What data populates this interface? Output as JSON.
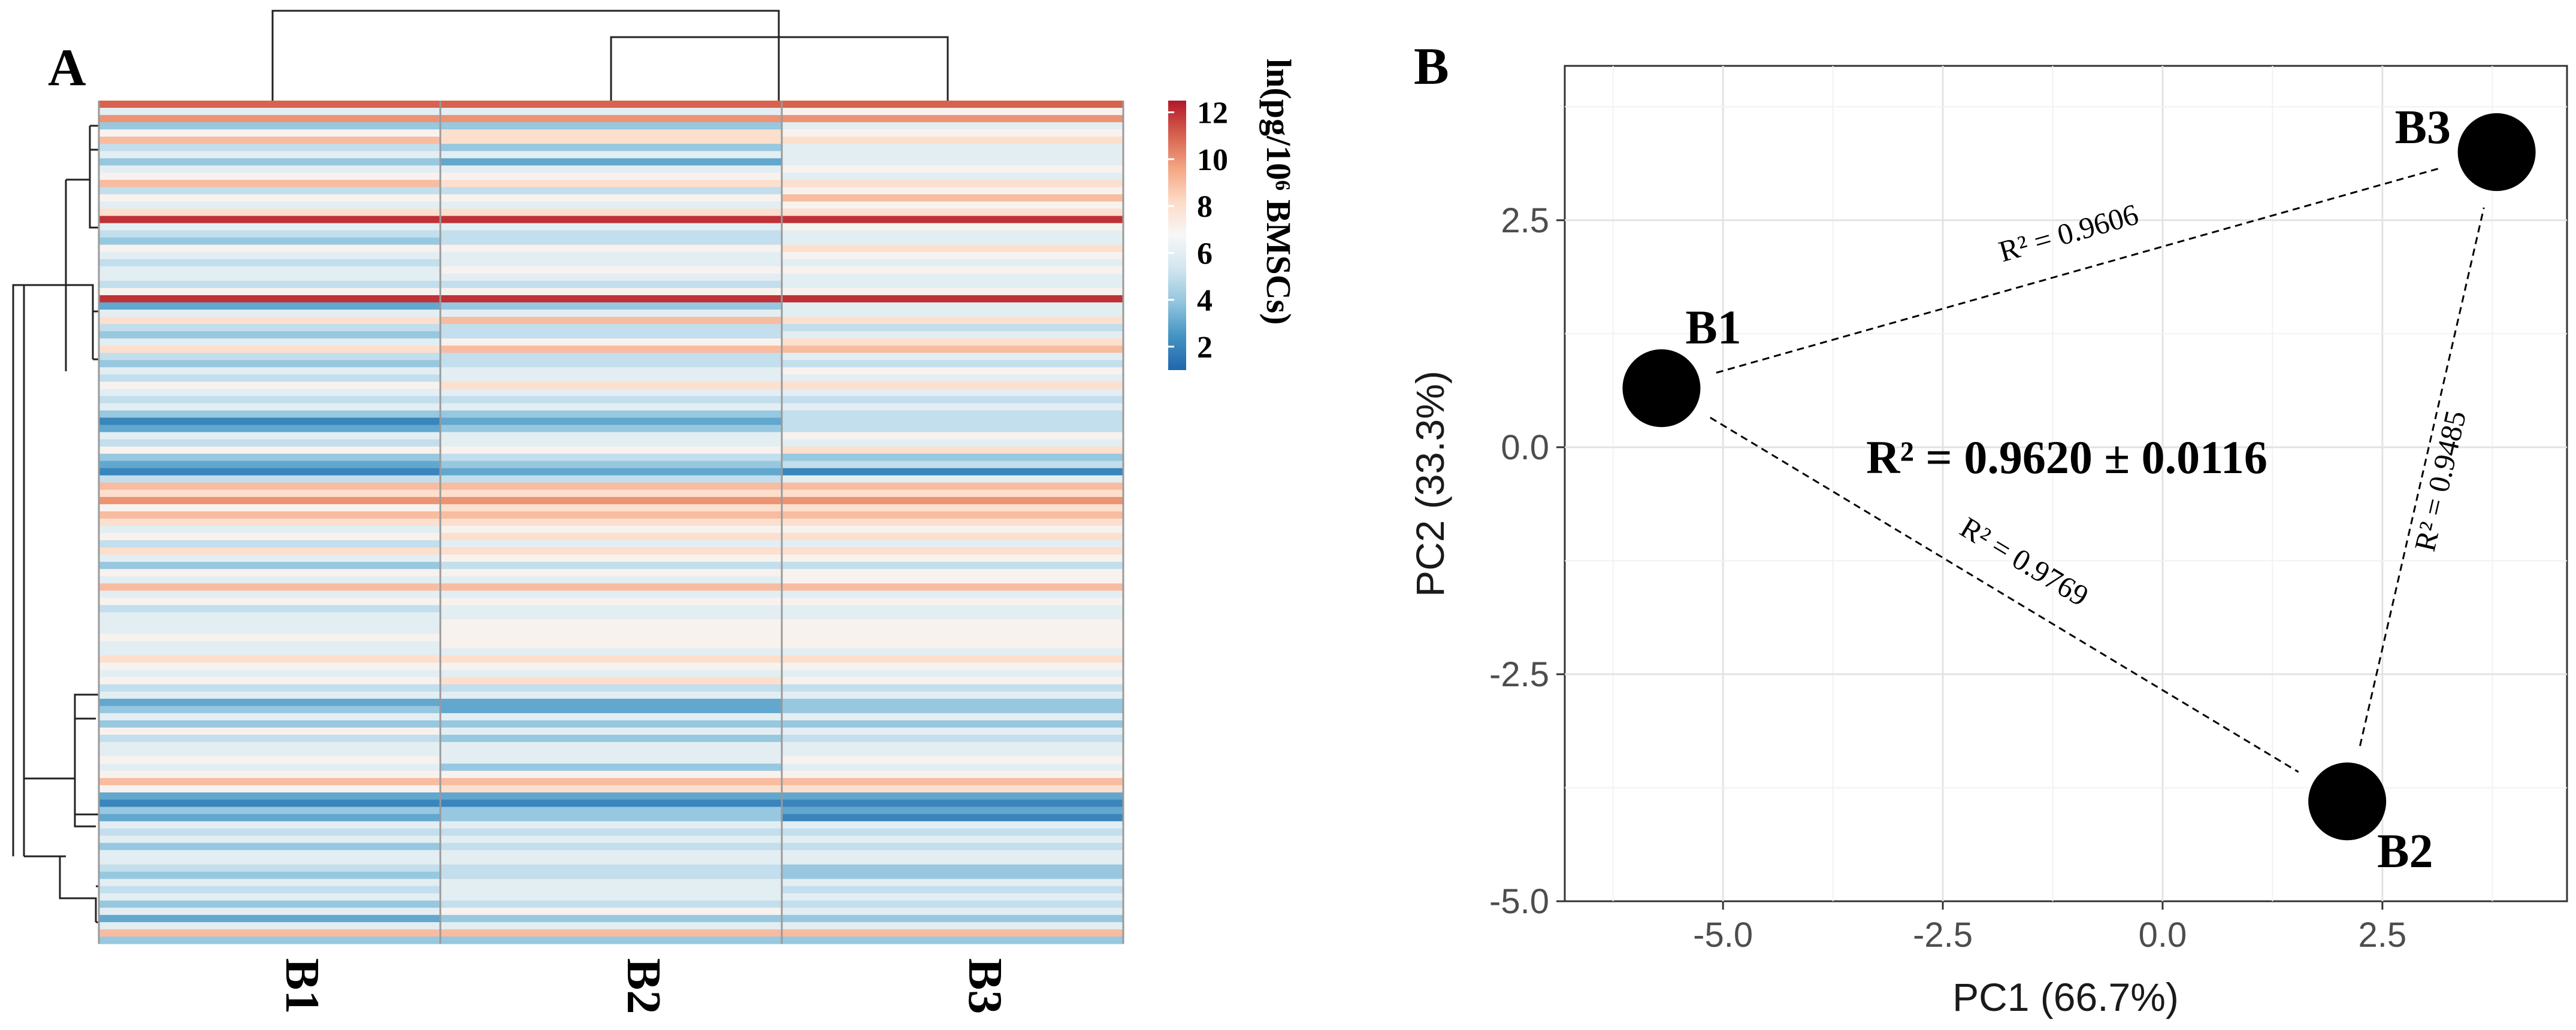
{
  "panels": {
    "a_label": "A",
    "b_label": "B"
  },
  "heatmap": {
    "columns": [
      "B1",
      "B2",
      "B3"
    ],
    "colorbar": {
      "title": "ln(pg/10⁶ BMSCs)",
      "ticks": [
        12,
        10,
        8,
        6,
        4,
        2
      ],
      "range": [
        1,
        12.5
      ],
      "colors": [
        "#2166ac",
        "#4393c3",
        "#92c5de",
        "#d1e5f0",
        "#f7f7f7",
        "#fddbc7",
        "#f4a582",
        "#d6604d",
        "#b2182b"
      ]
    },
    "rows": [
      [
        11,
        11,
        11
      ],
      [
        6,
        6,
        7
      ],
      [
        10,
        10,
        10
      ],
      [
        4,
        4,
        6
      ],
      [
        7,
        8,
        7
      ],
      [
        9,
        8,
        8
      ],
      [
        5,
        4,
        6
      ],
      [
        6,
        6,
        6
      ],
      [
        4,
        3,
        6
      ],
      [
        6,
        6,
        7
      ],
      [
        7,
        7,
        6
      ],
      [
        9,
        8,
        8
      ],
      [
        5,
        5,
        7
      ],
      [
        7,
        7,
        9
      ],
      [
        6,
        6,
        7
      ],
      [
        8,
        8,
        8
      ],
      [
        12,
        12,
        12
      ],
      [
        6,
        6,
        7
      ],
      [
        5,
        5,
        6
      ],
      [
        4,
        5,
        6
      ],
      [
        7,
        7,
        8
      ],
      [
        6,
        6,
        7
      ],
      [
        5,
        6,
        6
      ],
      [
        6,
        7,
        7
      ],
      [
        6,
        6,
        6
      ],
      [
        5,
        5,
        6
      ],
      [
        7,
        7,
        7
      ],
      [
        12,
        12,
        12
      ],
      [
        3,
        4,
        6
      ],
      [
        6,
        6,
        6
      ],
      [
        8,
        9,
        8
      ],
      [
        5,
        5,
        5
      ],
      [
        4,
        5,
        6
      ],
      [
        6,
        7,
        8
      ],
      [
        8,
        9,
        9
      ],
      [
        5,
        5,
        6
      ],
      [
        4,
        5,
        5
      ],
      [
        6,
        6,
        7
      ],
      [
        5,
        6,
        6
      ],
      [
        7,
        8,
        8
      ],
      [
        6,
        6,
        6
      ],
      [
        5,
        5,
        5
      ],
      [
        6,
        6,
        6
      ],
      [
        4,
        4,
        5
      ],
      [
        2,
        3,
        5
      ],
      [
        3,
        4,
        5
      ],
      [
        6,
        6,
        7
      ],
      [
        5,
        6,
        6
      ],
      [
        7,
        7,
        8
      ],
      [
        4,
        5,
        4
      ],
      [
        3,
        4,
        5
      ],
      [
        2,
        3,
        2
      ],
      [
        5,
        5,
        6
      ],
      [
        9,
        9,
        9
      ],
      [
        8,
        8,
        8
      ],
      [
        10,
        10,
        10
      ],
      [
        7,
        8,
        8
      ],
      [
        9,
        9,
        9
      ],
      [
        8,
        8,
        8
      ],
      [
        6,
        7,
        7
      ],
      [
        7,
        8,
        8
      ],
      [
        5,
        6,
        6
      ],
      [
        8,
        8,
        8
      ],
      [
        6,
        7,
        7
      ],
      [
        4,
        5,
        5
      ],
      [
        7,
        7,
        7
      ],
      [
        6,
        6,
        7
      ],
      [
        9,
        9,
        9
      ],
      [
        6,
        6,
        6
      ],
      [
        7,
        7,
        7
      ],
      [
        5,
        6,
        6
      ],
      [
        6,
        6,
        6
      ],
      [
        6,
        7,
        7
      ],
      [
        6,
        7,
        7
      ],
      [
        7,
        7,
        7
      ],
      [
        6,
        7,
        7
      ],
      [
        6,
        6,
        6
      ],
      [
        8,
        8,
        8
      ],
      [
        7,
        7,
        7
      ],
      [
        6,
        6,
        6
      ],
      [
        7,
        8,
        7
      ],
      [
        5,
        5,
        5
      ],
      [
        6,
        6,
        6
      ],
      [
        3,
        3,
        4
      ],
      [
        4,
        3,
        4
      ],
      [
        6,
        6,
        6
      ],
      [
        4,
        4,
        4
      ],
      [
        7,
        6,
        6
      ],
      [
        5,
        4,
        5
      ],
      [
        6,
        6,
        6
      ],
      [
        6,
        6,
        6
      ],
      [
        7,
        6,
        7
      ],
      [
        6,
        4,
        6
      ],
      [
        7,
        7,
        7
      ],
      [
        9,
        9,
        9
      ],
      [
        7,
        8,
        8
      ],
      [
        3,
        3,
        3
      ],
      [
        2,
        2,
        2
      ],
      [
        4,
        4,
        3
      ],
      [
        3,
        4,
        2
      ],
      [
        6,
        6,
        6
      ],
      [
        5,
        5,
        5
      ],
      [
        6,
        6,
        6
      ],
      [
        4,
        5,
        5
      ],
      [
        6,
        6,
        6
      ],
      [
        6,
        6,
        6
      ],
      [
        5,
        5,
        4
      ],
      [
        4,
        5,
        4
      ],
      [
        6,
        6,
        6
      ],
      [
        5,
        6,
        5
      ],
      [
        6,
        6,
        6
      ],
      [
        4,
        5,
        5
      ],
      [
        6,
        7,
        6
      ],
      [
        3,
        4,
        4
      ],
      [
        6,
        6,
        6
      ],
      [
        9,
        9,
        9
      ],
      [
        4,
        4,
        4
      ]
    ]
  },
  "chart_data": {
    "type": "scatter",
    "title": "",
    "xlabel": "PC1 (66.7%)",
    "ylabel": "PC2 (33.3%)",
    "xlim": [
      -6.8,
      4.6
    ],
    "ylim": [
      -5.0,
      4.2
    ],
    "x_ticks": [
      -5.0,
      -2.5,
      0.0,
      2.5
    ],
    "y_ticks": [
      2.5,
      0.0,
      -2.5,
      -5.0
    ],
    "x_tick_labels": [
      "-5.0",
      "-2.5",
      "0.0",
      "2.5"
    ],
    "y_tick_labels": [
      "2.5",
      "0.0",
      "-2.5",
      "-5.0"
    ],
    "points": [
      {
        "name": "B1",
        "x": -5.7,
        "y": 0.65
      },
      {
        "name": "B2",
        "x": 2.1,
        "y": -3.9
      },
      {
        "name": "B3",
        "x": 3.8,
        "y": 3.25
      }
    ],
    "pairs": [
      {
        "from": "B1",
        "to": "B3",
        "r2": "R² = 0.9606"
      },
      {
        "from": "B1",
        "to": "B2",
        "r2": "R² = 0.9769"
      },
      {
        "from": "B2",
        "to": "B3",
        "r2": "R² = 0.9485"
      }
    ],
    "summary": "R² = 0.9620 ± 0.0116"
  }
}
